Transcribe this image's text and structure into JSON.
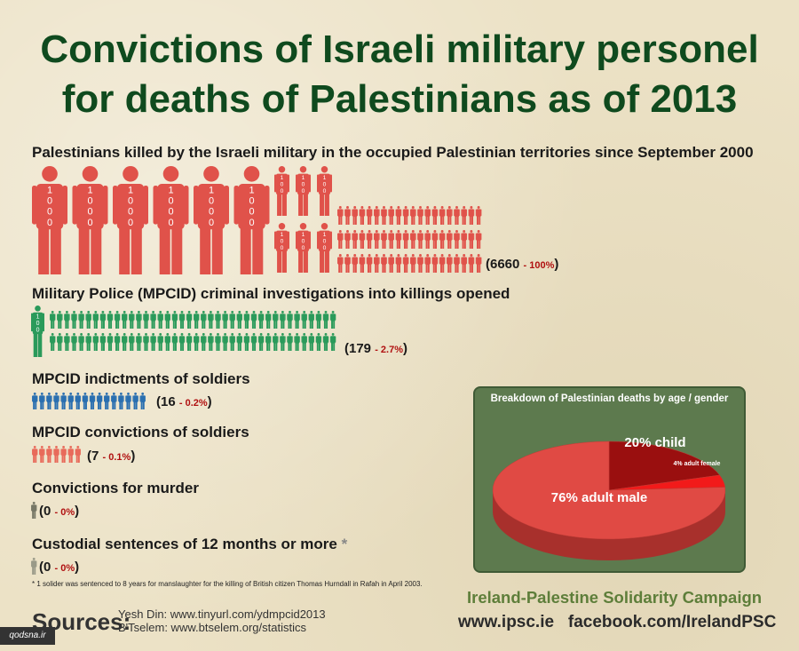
{
  "title": {
    "line1": "Convictions of Israeli military personel",
    "line2": "for deaths of Palestinians as of 2013"
  },
  "sections": [
    {
      "label": "Palestinians killed by the Israeli military in the occupied Palestinian territories since September 2000",
      "count": "(6660",
      "pct": "- 100%",
      "close": ")"
    },
    {
      "label": "Military Police (MPCID) criminal investigations into killings opened",
      "count": "(179",
      "pct": "- 2.7%",
      "close": ")"
    },
    {
      "label": "MPCID indictments of soldiers",
      "count": "(16",
      "pct": "- 0.2%",
      "close": ")"
    },
    {
      "label": "MPCID convictions of soldiers",
      "count": "(7",
      "pct": "- 0.1%",
      "close": ")"
    },
    {
      "label": "Convictions for murder",
      "count": "(0",
      "pct": "- 0%",
      "close": ")"
    },
    {
      "label": "Custodial sentences of 12 months or more",
      "asterisk": "*",
      "count": "(0",
      "pct": "- 0%",
      "close": ")"
    }
  ],
  "icon_labels": {
    "big": "1000",
    "medium": "100"
  },
  "footnote": "* 1 solider was sentenced to 8 years for manslaughter for the killing of British citizen Thomas Hurndall in Rafah in April 2003.",
  "sources": {
    "label": "Sources:",
    "line1": "Yesh Din: www.tinyurl.com/ydmpcid2013",
    "line2": "B'Tselem: www.btselem.org/statistics"
  },
  "footer": {
    "org": "Ireland-Palestine Solidarity Campaign",
    "urls": "www.ipsc.ie   facebook.com/IrelandPSC"
  },
  "watermark": "qodsna.ir",
  "colors": {
    "title": "#0f4a1e",
    "killed": "#e0524a",
    "investigations": "#2a9a5a",
    "indictments": "#2a6fb0",
    "convictions": "#e86a5a",
    "zero": "#777766"
  },
  "chart_data": [
    {
      "type": "bar",
      "categories": [
        "Palestinians killed by the Israeli military in the occupied Palestinian territories since September 2000",
        "Military Police (MPCID) criminal investigations into killings opened",
        "MPCID indictments of soldiers",
        "MPCID convictions of soldiers",
        "Convictions for murder",
        "Custodial sentences of 12 months or more"
      ],
      "values": [
        6660,
        179,
        16,
        7,
        0,
        0
      ],
      "percent": [
        100,
        2.7,
        0.2,
        0.1,
        0,
        0
      ]
    },
    {
      "type": "pie",
      "title": "Breakdown of Palestinian deaths by age / gender",
      "slices": [
        {
          "label": "76% adult male",
          "value": 76,
          "color": "#e04a44"
        },
        {
          "label": "20% child",
          "value": 20,
          "color": "#9a0f0f"
        },
        {
          "label": "4% adult female",
          "value": 4,
          "color": "#f21a1a"
        }
      ]
    }
  ]
}
